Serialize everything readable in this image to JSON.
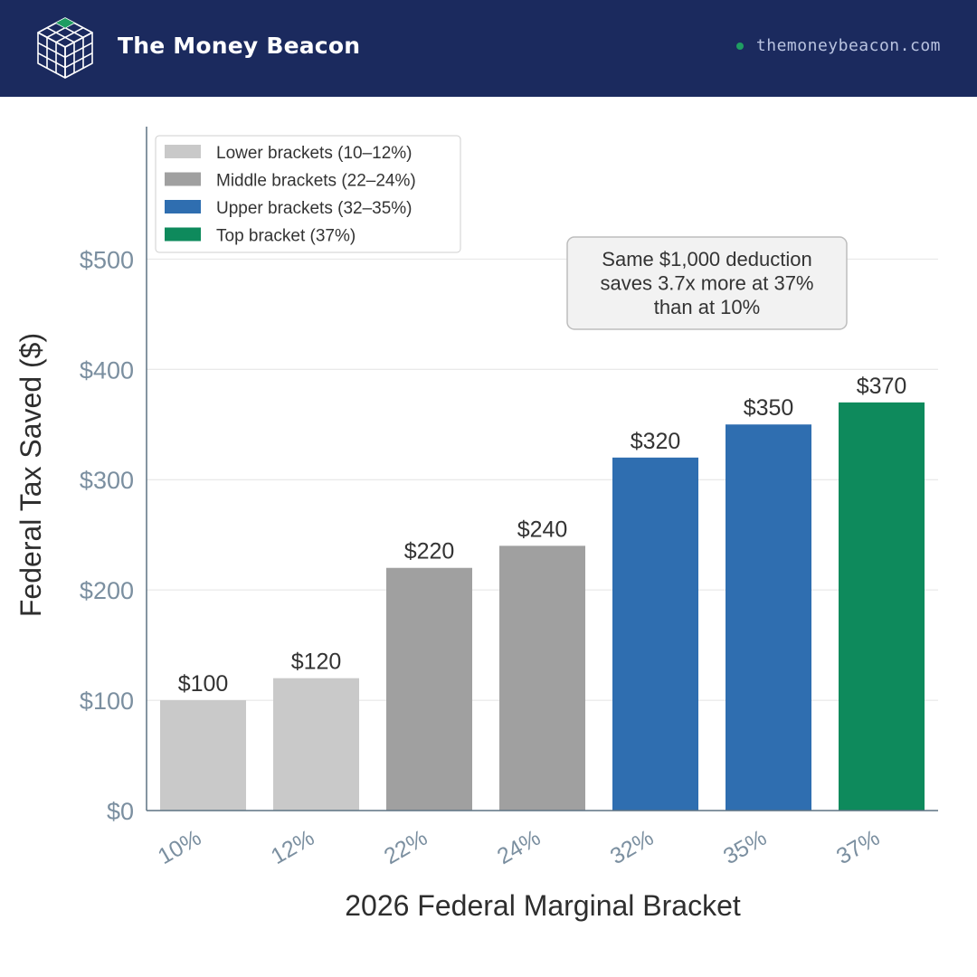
{
  "header": {
    "brand": "The Money Beacon",
    "site": "themoneybeacon.com",
    "logo_icon": "cube-grid-icon",
    "background_color": "#1b2a5e"
  },
  "chart_data": {
    "type": "bar",
    "categories": [
      "10%",
      "12%",
      "22%",
      "24%",
      "32%",
      "35%",
      "37%"
    ],
    "values": [
      100,
      120,
      220,
      240,
      320,
      350,
      370
    ],
    "value_labels": [
      "$100",
      "$120",
      "$220",
      "$240",
      "$320",
      "$350",
      "$370"
    ],
    "groups": [
      0,
      0,
      1,
      1,
      2,
      2,
      3
    ],
    "legend": [
      {
        "label": "Lower brackets (10–12%)",
        "color": "#c9c9c9"
      },
      {
        "label": "Middle brackets (22–24%)",
        "color": "#a0a0a0"
      },
      {
        "label": "Upper brackets (32–35%)",
        "color": "#2f6eb0"
      },
      {
        "label": "Top bracket (37%)",
        "color": "#0e8a5c"
      }
    ],
    "legend_position": "top-left",
    "xlabel": "2026 Federal Marginal Bracket",
    "ylabel": "Federal Tax Saved ($)",
    "ylim": [
      0,
      620
    ],
    "yticks": [
      0,
      100,
      200,
      300,
      400,
      500
    ],
    "ytick_labels": [
      "$0",
      "$100",
      "$200",
      "$300",
      "$400",
      "$500"
    ],
    "grid": true,
    "annotation": [
      "Same $1,000 deduction",
      "saves 3.7x more at 37%",
      "than at 10%"
    ]
  }
}
